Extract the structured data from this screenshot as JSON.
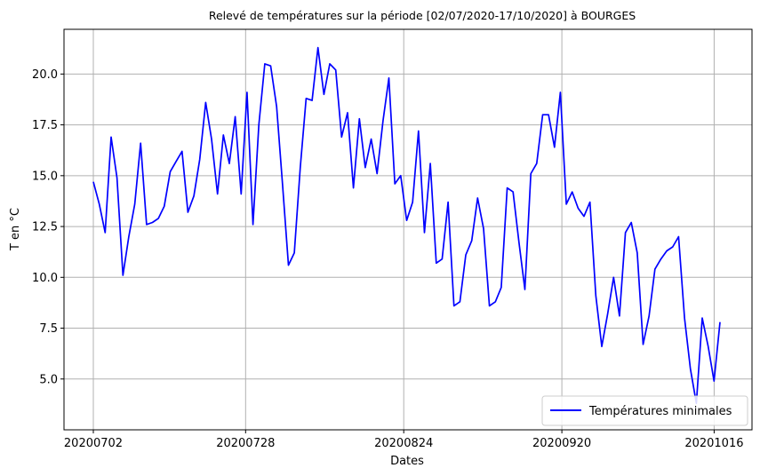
{
  "chart_data": {
    "type": "line",
    "title": "Relevé de températures sur la période [02/07/2020-17/10/2020] à BOURGES",
    "xlabel": "Dates",
    "ylabel": "T en °C",
    "x_start": "2020-07-02",
    "x_end": "2020-10-17",
    "x_ticks": [
      {
        "date": "2020-07-02",
        "label": "20200702"
      },
      {
        "date": "2020-07-28",
        "label": "20200728"
      },
      {
        "date": "2020-08-24",
        "label": "20200824"
      },
      {
        "date": "2020-09-20",
        "label": "20200920"
      },
      {
        "date": "2020-10-16",
        "label": "20201016"
      }
    ],
    "y_ticks": [
      5.0,
      7.5,
      10.0,
      12.5,
      15.0,
      17.5,
      20.0
    ],
    "y_tick_labels": [
      "5.0",
      "7.5",
      "10.0",
      "12.5",
      "15.0",
      "17.5",
      "20.0"
    ],
    "ylim": [
      2.5,
      22.2
    ],
    "grid": true,
    "legend_position": "bottom-right",
    "series": [
      {
        "name": "Températures minimales",
        "color": "#0000ff",
        "values": [
          14.7,
          13.6,
          12.2,
          16.9,
          14.9,
          10.1,
          12.0,
          13.6,
          16.6,
          12.6,
          12.7,
          12.9,
          13.5,
          15.2,
          15.7,
          16.2,
          13.2,
          14.0,
          15.8,
          18.6,
          16.8,
          14.1,
          17.0,
          15.6,
          17.9,
          14.1,
          19.1,
          12.6,
          17.5,
          20.5,
          20.4,
          18.4,
          14.6,
          10.6,
          11.2,
          15.4,
          18.8,
          18.7,
          21.3,
          19.0,
          20.5,
          20.2,
          16.9,
          18.1,
          14.4,
          17.8,
          15.4,
          16.8,
          15.1,
          17.7,
          19.8,
          14.6,
          15.0,
          12.8,
          13.7,
          17.2,
          12.2,
          15.6,
          10.7,
          10.9,
          13.7,
          8.6,
          8.8,
          11.1,
          11.8,
          13.9,
          12.4,
          8.6,
          8.8,
          9.5,
          14.4,
          14.2,
          11.7,
          9.4,
          15.1,
          15.6,
          18.0,
          18.0,
          16.4,
          19.1,
          13.6,
          14.2,
          13.4,
          13.0,
          13.7,
          9.1,
          6.6,
          8.2,
          10.0,
          8.1,
          12.2,
          12.7,
          11.2,
          6.7,
          8.1,
          10.4,
          10.9,
          11.3,
          11.5,
          12.0,
          8.0,
          5.5,
          3.8,
          8.0,
          6.6,
          4.9,
          7.8
        ]
      }
    ]
  }
}
